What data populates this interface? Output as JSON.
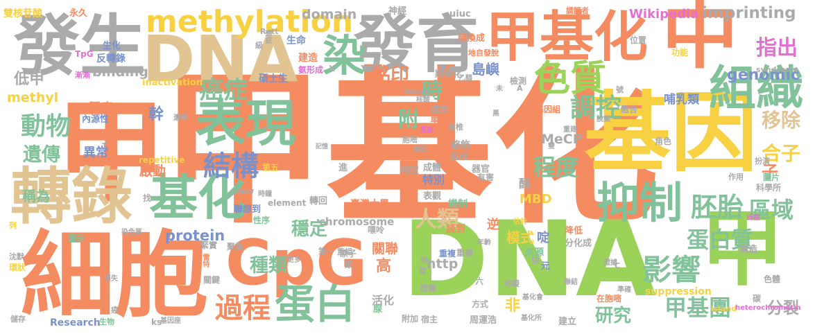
{
  "cloud": {
    "words": [
      {
        "text": "甲基化",
        "color": "#f58b61"
      },
      {
        "text": "基因",
        "color": "#f7d142"
      },
      {
        "text": "DNA",
        "color": "#9bd35a"
      },
      {
        "text": "甲",
        "color": "#f58b61"
      },
      {
        "text": "中",
        "color": "#f58b61"
      },
      {
        "text": "甲",
        "color": "#9bd35a"
      },
      {
        "text": "細胞",
        "color": "#f58b61"
      },
      {
        "text": "DNA",
        "color": "#e2c493"
      },
      {
        "text": "發生",
        "color": "#aaaaaa"
      },
      {
        "text": "發育",
        "color": "#aaaaaa"
      },
      {
        "text": "甲基化",
        "color": "#f58b61"
      },
      {
        "text": "轉錄",
        "color": "#e2c493"
      },
      {
        "text": "CpG",
        "color": "#f58b61"
      },
      {
        "text": "表現",
        "color": "#82c29a"
      },
      {
        "text": "基化",
        "color": "#82c29a"
      },
      {
        "text": "組織",
        "color": "#82c29a"
      },
      {
        "text": "色質",
        "color": "#9bd35a"
      },
      {
        "text": "染",
        "color": "#82c29a"
      },
      {
        "text": "methylation",
        "color": "#f7d142"
      },
      {
        "text": "抑制",
        "color": "#82c29a"
      },
      {
        "text": "蛋白",
        "color": "#82c29a"
      },
      {
        "text": "結構",
        "color": "#7a92cb"
      },
      {
        "text": "過程",
        "color": "#f58b61"
      },
      {
        "text": "影響",
        "color": "#82c29a"
      },
      {
        "text": "癌症",
        "color": "#82c29a"
      },
      {
        "text": "調控",
        "color": "#82c29a"
      },
      {
        "text": "動物",
        "color": "#82c29a"
      },
      {
        "text": "遺傳",
        "color": "#82c29a"
      },
      {
        "text": "胚胎",
        "color": "#82c29a"
      },
      {
        "text": "區域",
        "color": "#82c29a"
      },
      {
        "text": "甲基團",
        "color": "#82c29a"
      },
      {
        "text": "蛋白質",
        "color": "#82c29a"
      },
      {
        "text": "程度",
        "color": "#82c29a"
      },
      {
        "text": "人類",
        "color": "#e2c493"
      },
      {
        "text": "種類",
        "color": "#82c29a"
      },
      {
        "text": "穩定",
        "color": "#82c29a"
      },
      {
        "text": "研究",
        "color": "#82c29a"
      },
      {
        "text": "指出",
        "color": "#e46fd3"
      },
      {
        "text": "移除",
        "color": "#e2c493"
      },
      {
        "text": "合子",
        "color": "#f7d142"
      },
      {
        "text": "銘印",
        "color": "#f58b61"
      },
      {
        "text": "時",
        "color": "#82c29a"
      },
      {
        "text": "附",
        "color": "#82c29a"
      },
      {
        "text": "genomic",
        "color": "#7a92cb"
      },
      {
        "text": "imprinting",
        "color": "#aaaaaa"
      },
      {
        "text": "domain",
        "color": "#aaaaaa"
      },
      {
        "text": "binding",
        "color": "#aaaaaa"
      },
      {
        "text": "methyl",
        "color": "#f7d142"
      },
      {
        "text": "protein",
        "color": "#7a92cb"
      },
      {
        "text": "chromosome",
        "color": "#aaaaaa"
      },
      {
        "text": "Wikipedia",
        "color": "#e46fd3"
      },
      {
        "text": "MeCP",
        "color": "#aaaaaa"
      },
      {
        "text": "MBD",
        "color": "#f7d142"
      },
      {
        "text": "http",
        "color": "#aaaaaa"
      },
      {
        "text": "分裂",
        "color": "#aaaaaa"
      },
      {
        "text": "低甲",
        "color": "#aaaaaa"
      },
      {
        "text": "稱為",
        "color": "#82c29a"
      },
      {
        "text": "雙核苷酸",
        "color": "#f7d142"
      },
      {
        "text": "永久",
        "color": "#f58b61"
      },
      {
        "text": "轉換成",
        "color": "#f58b61"
      },
      {
        "text": "神經",
        "color": "#aaaaaa"
      },
      {
        "text": "uiuc",
        "color": "#aaaaaa"
      },
      {
        "text": "調節者",
        "color": "#f58b61"
      },
      {
        "text": "腫瘤",
        "color": "#f58b61"
      },
      {
        "text": "幹",
        "color": "#7a92cb"
      },
      {
        "text": "島嶼",
        "color": "#7a92cb"
      },
      {
        "text": "哺乳類",
        "color": "#7a92cb"
      },
      {
        "text": "模式",
        "color": "#f7d142"
      },
      {
        "text": "關聯",
        "color": "#f58b61"
      },
      {
        "text": "啟動",
        "color": "#f58b61"
      },
      {
        "text": "異常",
        "color": "#7a92cb"
      },
      {
        "text": "特別",
        "color": "#7a92cb"
      },
      {
        "text": "重複",
        "color": "#7a92cb"
      },
      {
        "text": "子",
        "color": "#f58b61"
      },
      {
        "text": "酶",
        "color": "#aaaaaa"
      },
      {
        "text": "啶",
        "color": "#7a92cb"
      },
      {
        "text": "高",
        "color": "#f58b61"
      },
      {
        "text": "非",
        "color": "#f7d142"
      },
      {
        "text": "活化",
        "color": "#aaaaaa"
      },
      {
        "text": "臺灣大學",
        "color": "#f58b61"
      },
      {
        "text": "表觀",
        "color": "#aaaaaa"
      },
      {
        "text": "來源",
        "color": "#82c29a"
      },
      {
        "text": "suppression",
        "color": "#f7d142"
      },
      {
        "text": "Research",
        "color": "#7a92cb"
      },
      {
        "text": "island",
        "color": "#f7d142"
      },
      {
        "text": "heterochromatin",
        "color": "#e46fd3"
      },
      {
        "text": "element",
        "color": "#aaaaaa"
      },
      {
        "text": "inactivation",
        "color": "#f7d142"
      },
      {
        "text": "repetitive",
        "color": "#f7d142"
      },
      {
        "text": "syndrome",
        "color": "#aaaaaa"
      },
      {
        "text": "locus",
        "color": "#aaaaaa"
      },
      {
        "text": "www",
        "color": "#aaaaaa"
      },
      {
        "text": "ks",
        "color": "#aaaaaa"
      },
      {
        "text": "Rett",
        "color": "#aaaaaa"
      },
      {
        "text": "TpG",
        "color": "#e46fd3"
      },
      {
        "text": "內源性",
        "color": "#7a92cb"
      },
      {
        "text": "反轉錄",
        "color": "#7a92cb"
      },
      {
        "text": "生化",
        "color": "#7a92cb"
      },
      {
        "text": "生命",
        "color": "#7a92cb"
      },
      {
        "text": "建造",
        "color": "#f58b61"
      },
      {
        "text": "碩士生",
        "color": "#7a92cb"
      },
      {
        "text": "氨形成",
        "color": "#e46fd3"
      },
      {
        "text": "羥基化",
        "color": "#aaaaaa"
      },
      {
        "text": "成幹",
        "color": "#aaaaaa"
      },
      {
        "text": "單一",
        "color": "#f58b61"
      },
      {
        "text": "修飾",
        "color": "#aaaaaa"
      },
      {
        "text": "長成",
        "color": "#aaaaaa"
      },
      {
        "text": "成體",
        "color": "#aaaaaa"
      },
      {
        "text": "器官",
        "color": "#aaaaaa"
      },
      {
        "text": "特定",
        "color": "#aaaaaa"
      },
      {
        "text": "進",
        "color": "#aaaaaa"
      },
      {
        "text": "第五",
        "color": "#f7d142"
      },
      {
        "text": "機制",
        "color": "#82c29a"
      },
      {
        "text": "有害",
        "color": "#aaaaaa"
      },
      {
        "text": "重複",
        "color": "#aaaaaa"
      },
      {
        "text": "聯想到",
        "color": "#7a92cb"
      },
      {
        "text": "性序",
        "color": "#82c29a"
      },
      {
        "text": "轉回",
        "color": "#aaaaaa"
      },
      {
        "text": "談到",
        "color": "#f58b61"
      },
      {
        "text": "逆",
        "color": "#f58b61"
      },
      {
        "text": "分化成",
        "color": "#aaaaaa"
      },
      {
        "text": "降低",
        "color": "#f58b61"
      },
      {
        "text": "構造",
        "color": "#aaaaaa"
      },
      {
        "text": "色體",
        "color": "#aaaaaa"
      },
      {
        "text": "圖片",
        "color": "#82c29a"
      },
      {
        "text": "科學所",
        "color": "#aaaaaa"
      },
      {
        "text": "作用",
        "color": "#aaaaaa"
      },
      {
        "text": "角色",
        "color": "#aaaaaa"
      },
      {
        "text": "扮演",
        "color": "#aaaaaa"
      },
      {
        "text": "融合",
        "color": "#aaaaaa"
      },
      {
        "text": "檢測",
        "color": "#aaaaaa"
      },
      {
        "text": "位置",
        "color": "#aaaaaa"
      },
      {
        "text": "功能",
        "color": "#f7d142"
      },
      {
        "text": "地自發脫",
        "color": "#f58b61"
      },
      {
        "text": "基因組",
        "color": "#f58b61"
      },
      {
        "text": "長期",
        "color": "#e46fd3"
      },
      {
        "text": "肯椎",
        "color": "#aaaaaa"
      },
      {
        "text": "胞嘧",
        "color": "#aaaaaa"
      },
      {
        "text": "原子",
        "color": "#aaaaaa"
      },
      {
        "text": "嘌呤",
        "color": "#aaaaaa"
      },
      {
        "text": "腺",
        "color": "#82c29a"
      },
      {
        "text": "兩",
        "color": "#aaaaaa"
      },
      {
        "text": "六",
        "color": "#aaaaaa"
      },
      {
        "text": "妨礙",
        "color": "#aaaaaa"
      },
      {
        "text": "元",
        "color": "#7a92cb"
      },
      {
        "text": "快",
        "color": "#aaaaaa"
      },
      {
        "text": "改變",
        "color": "#aaaaaa"
      },
      {
        "text": "方式",
        "color": "#aaaaaa"
      },
      {
        "text": "在胞嘧",
        "color": "#f58b61"
      },
      {
        "text": "周運浩",
        "color": "#aaaaaa"
      },
      {
        "text": "建立",
        "color": "#aaaaaa"
      },
      {
        "text": "附加",
        "color": "#aaaaaa"
      },
      {
        "text": "宿主",
        "color": "#aaaaaa"
      },
      {
        "text": "基因座",
        "color": "#aaaaaa"
      },
      {
        "text": "生物",
        "color": "#82c29a"
      },
      {
        "text": "儲存",
        "color": "#aaaaaa"
      },
      {
        "text": "環狀",
        "color": "#f7d142"
      },
      {
        "text": "沈默",
        "color": "#aaaaaa"
      },
      {
        "text": "消失",
        "color": "#aaaaaa"
      },
      {
        "text": "關鍵",
        "color": "#aaaaaa"
      },
      {
        "text": "聚集",
        "color": "#aaaaaa"
      },
      {
        "text": "緊實",
        "color": "#aaaaaa"
      },
      {
        "text": "染色質",
        "color": "#aaaaaa"
      },
      {
        "text": "圖示",
        "color": "#82c29a"
      },
      {
        "text": "更多",
        "color": "#aaaaaa"
      },
      {
        "text": "第一",
        "color": "#aaaaaa"
      },
      {
        "text": "找",
        "color": "#aaaaaa"
      },
      {
        "text": "列",
        "color": "#f7d142"
      },
      {
        "text": "瑕疵",
        "color": "#aaaaaa"
      },
      {
        "text": "級",
        "color": "#aaaaaa"
      },
      {
        "text": "記憶",
        "color": "#aaaaaa"
      },
      {
        "text": "聯結",
        "color": "#aaaaaa"
      },
      {
        "text": "碳",
        "color": "#aaaaaa"
      },
      {
        "text": "乙醯",
        "color": "#aaaaaa"
      },
      {
        "text": "號",
        "color": "#aaaaaa"
      },
      {
        "text": "年齡",
        "color": "#aaaaaa"
      },
      {
        "text": "基化所",
        "color": "#aaaaaa"
      },
      {
        "text": "基化會",
        "color": "#aaaaaa"
      },
      {
        "text": "重建",
        "color": "#aaaaaa"
      },
      {
        "text": "脫氨",
        "color": "#aaaaaa"
      },
      {
        "text": "漸漸",
        "color": "#e46fd3"
      },
      {
        "text": "時鐘",
        "color": "#aaaaaa"
      },
      {
        "text": "跟",
        "color": "#aaaaaa"
      },
      {
        "text": "估計",
        "color": "#f7d142"
      },
      {
        "text": "雷特",
        "color": "#f58b61"
      },
      {
        "text": "遺傳",
        "color": "#aaaaaa"
      },
      {
        "text": "癌",
        "color": "#aaaaaa"
      },
      {
        "text": "氏症",
        "color": "#e46fd3"
      },
      {
        "text": "證據",
        "color": "#aaaaaa"
      },
      {
        "text": "核酸",
        "color": "#aaaaaa"
      },
      {
        "text": "雙",
        "color": "#aaaaaa"
      },
      {
        "text": "基因",
        "color": "#aaaaaa"
      },
      {
        "text": "準確",
        "color": "#aaaaaa"
      },
      {
        "text": "更",
        "color": "#aaaaaa"
      },
      {
        "text": "未",
        "color": "#aaaaaa"
      },
      {
        "text": "X",
        "color": "#aaaaaa"
      },
      {
        "text": "T",
        "color": "#aaaaaa"
      },
      {
        "text": "C",
        "color": "#aaaaaa"
      },
      {
        "text": "黑",
        "color": "#aaaaaa"
      },
      {
        "text": "重組",
        "color": "#aaaaaa"
      },
      {
        "text": "個",
        "color": "#aaaaaa"
      },
      {
        "text": "一",
        "color": "#aaaaaa"
      },
      {
        "text": "A",
        "color": "#aaaaaa"
      }
    ]
  }
}
